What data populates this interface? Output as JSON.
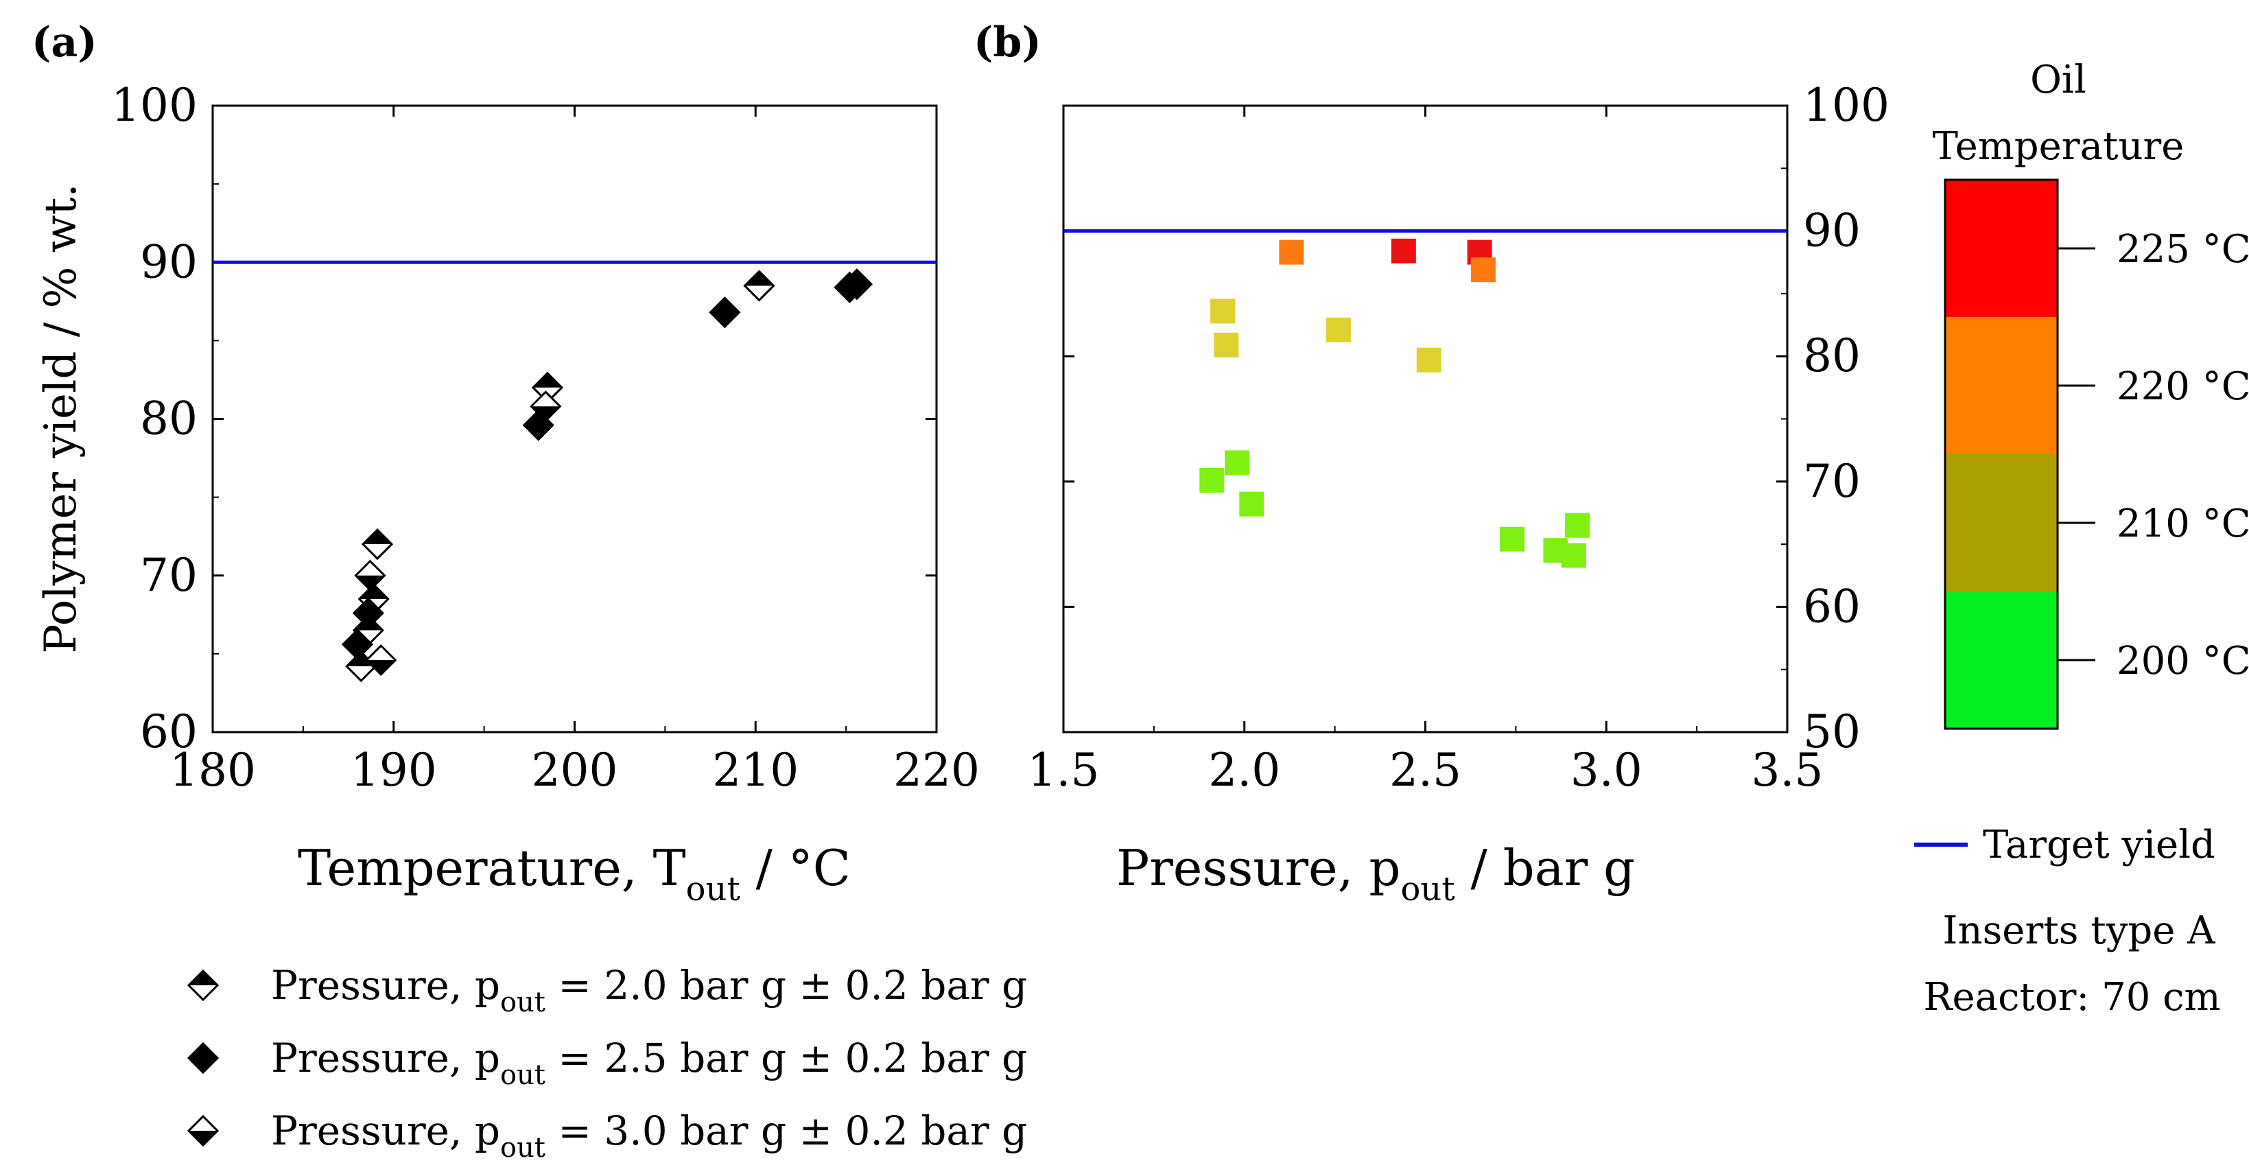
{
  "panel_a": {
    "label": "(a)"
  },
  "panel_b": {
    "label": "(b)"
  },
  "legend_markers": [
    {
      "prefix": "Pressure, p",
      "sub": "out",
      "suffix": " = 2.0 bar g ± 0.2 bar g"
    },
    {
      "prefix": "Pressure, p",
      "sub": "out",
      "suffix": " = 2.5 bar g ± 0.2 bar g"
    },
    {
      "prefix": "Pressure, p",
      "sub": "out",
      "suffix": " = 3.0 bar g ± 0.2 bar g"
    }
  ],
  "colorbar": {
    "title_line1": "Oil",
    "title_line2": "Temperature",
    "levels": [
      {
        "label": "225 °C",
        "color": "#ff0000"
      },
      {
        "label": "220 °C",
        "color": "#ff8000"
      },
      {
        "label": "210 °C",
        "color": "#aa9f00"
      },
      {
        "label": "200 °C",
        "color": "#00ee22"
      }
    ]
  },
  "target_legend": {
    "label": "Target yield",
    "color": "#1010d0"
  },
  "notes": {
    "line1": "Inserts type A",
    "line2": "Reactor: 70 cm"
  },
  "chart_data": [
    {
      "type": "scatter",
      "panel": "a",
      "xlabel_main": "Temperature, T",
      "xlabel_sub": "out",
      "xlabel_unit": " / °C",
      "ylabel": "Polymer yield / % wt.",
      "xlim": [
        180,
        220
      ],
      "ylim": [
        60,
        100
      ],
      "xticks": [
        180,
        190,
        200,
        210,
        220
      ],
      "yticks": [
        60,
        70,
        80,
        90,
        100
      ],
      "target_yield": 90,
      "series": [
        {
          "name": "Pressure, pout = 2.0 bar g ± 0.2 bar g",
          "marker": "diamond-top-filled",
          "x": [
            188.2,
            188.6,
            188.9,
            189.1,
            198.5,
            210.2
          ],
          "y": [
            64.2,
            66.5,
            68.5,
            72.0,
            82.0,
            88.5
          ]
        },
        {
          "name": "Pressure, pout = 2.5 bar g ± 0.2 bar g",
          "marker": "diamond-filled",
          "x": [
            188.0,
            188.6,
            198.0,
            208.3,
            215.2,
            215.6
          ],
          "y": [
            65.6,
            67.6,
            79.6,
            86.8,
            88.4,
            88.6
          ]
        },
        {
          "name": "Pressure, pout = 3.0 bar g ± 0.2 bar g",
          "marker": "diamond-bottom-filled",
          "x": [
            188.7,
            189.3,
            198.4
          ],
          "y": [
            70.0,
            64.6,
            80.8
          ]
        }
      ]
    },
    {
      "type": "scatter",
      "panel": "b",
      "xlabel_main": "Pressure, p",
      "xlabel_sub": "out",
      "xlabel_unit": " / bar g",
      "xlim": [
        1.5,
        3.5
      ],
      "ylim": [
        50,
        100
      ],
      "xticks": [
        1.5,
        2.0,
        2.5,
        3.0,
        3.5
      ],
      "yticks": [
        50,
        60,
        70,
        80,
        90,
        100
      ],
      "target_yield": 90,
      "points": [
        {
          "x": 2.44,
          "y": 88.4,
          "oil_temp": "225 °C"
        },
        {
          "x": 2.65,
          "y": 88.3,
          "oil_temp": "225 °C"
        },
        {
          "x": 2.13,
          "y": 88.3,
          "oil_temp": "220 °C"
        },
        {
          "x": 2.66,
          "y": 86.9,
          "oil_temp": "220 °C"
        },
        {
          "x": 1.94,
          "y": 83.6,
          "oil_temp": "210 °C"
        },
        {
          "x": 1.95,
          "y": 80.9,
          "oil_temp": "210 °C"
        },
        {
          "x": 2.26,
          "y": 82.1,
          "oil_temp": "210 °C"
        },
        {
          "x": 2.51,
          "y": 79.7,
          "oil_temp": "210 °C"
        },
        {
          "x": 1.91,
          "y": 70.1,
          "oil_temp": "200 °C"
        },
        {
          "x": 1.98,
          "y": 71.5,
          "oil_temp": "200 °C"
        },
        {
          "x": 2.02,
          "y": 68.2,
          "oil_temp": "200 °C"
        },
        {
          "x": 2.74,
          "y": 65.4,
          "oil_temp": "200 °C"
        },
        {
          "x": 2.86,
          "y": 64.5,
          "oil_temp": "200 °C"
        },
        {
          "x": 2.91,
          "y": 64.1,
          "oil_temp": "200 °C"
        },
        {
          "x": 2.92,
          "y": 66.5,
          "oil_temp": "200 °C"
        }
      ]
    }
  ]
}
